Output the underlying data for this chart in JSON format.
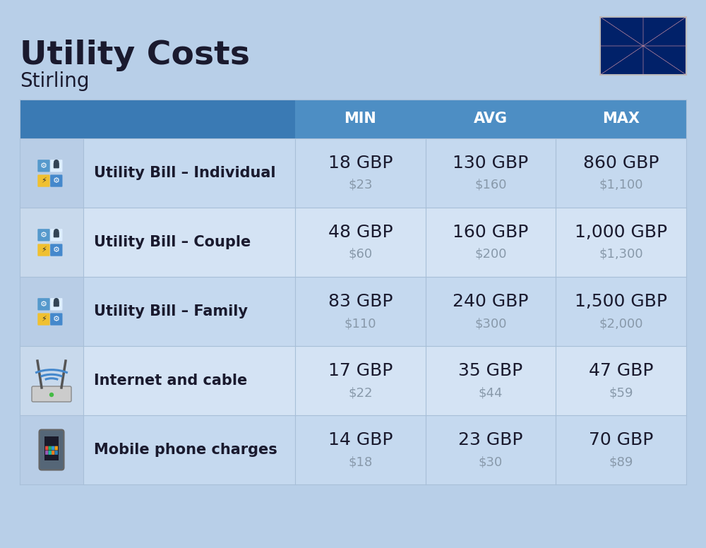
{
  "title": "Utility Costs",
  "subtitle": "Stirling",
  "background_color": "#b8cfe8",
  "header_bg_color": "#4d8ec4",
  "header_text_color": "#ffffff",
  "row_bg_odd": "#c5d9ef",
  "row_bg_even": "#d4e3f4",
  "icon_col_bg_odd": "#b8cde6",
  "icon_col_bg_even": "#c8d9ec",
  "col_headers": [
    "MIN",
    "AVG",
    "MAX"
  ],
  "rows": [
    {
      "label": "Utility Bill – Individual",
      "icon": "utility",
      "min_gbp": "18 GBP",
      "min_usd": "$23",
      "avg_gbp": "130 GBP",
      "avg_usd": "$160",
      "max_gbp": "860 GBP",
      "max_usd": "$1,100"
    },
    {
      "label": "Utility Bill – Couple",
      "icon": "utility",
      "min_gbp": "48 GBP",
      "min_usd": "$60",
      "avg_gbp": "160 GBP",
      "avg_usd": "$200",
      "max_gbp": "1,000 GBP",
      "max_usd": "$1,300"
    },
    {
      "label": "Utility Bill – Family",
      "icon": "utility",
      "min_gbp": "83 GBP",
      "min_usd": "$110",
      "avg_gbp": "240 GBP",
      "avg_usd": "$300",
      "max_gbp": "1,500 GBP",
      "max_usd": "$2,000"
    },
    {
      "label": "Internet and cable",
      "icon": "internet",
      "min_gbp": "17 GBP",
      "min_usd": "$22",
      "avg_gbp": "35 GBP",
      "avg_usd": "$44",
      "max_gbp": "47 GBP",
      "max_usd": "$59"
    },
    {
      "label": "Mobile phone charges",
      "icon": "phone",
      "min_gbp": "14 GBP",
      "min_usd": "$18",
      "avg_gbp": "23 GBP",
      "avg_usd": "$30",
      "max_gbp": "70 GBP",
      "max_usd": "$89"
    }
  ],
  "label_color": "#1a1a2e",
  "value_color": "#1a1a2e",
  "usd_color": "#8899aa",
  "title_fontsize": 34,
  "subtitle_fontsize": 20,
  "header_fontsize": 15,
  "label_fontsize": 15,
  "value_fontsize": 18,
  "usd_fontsize": 13
}
